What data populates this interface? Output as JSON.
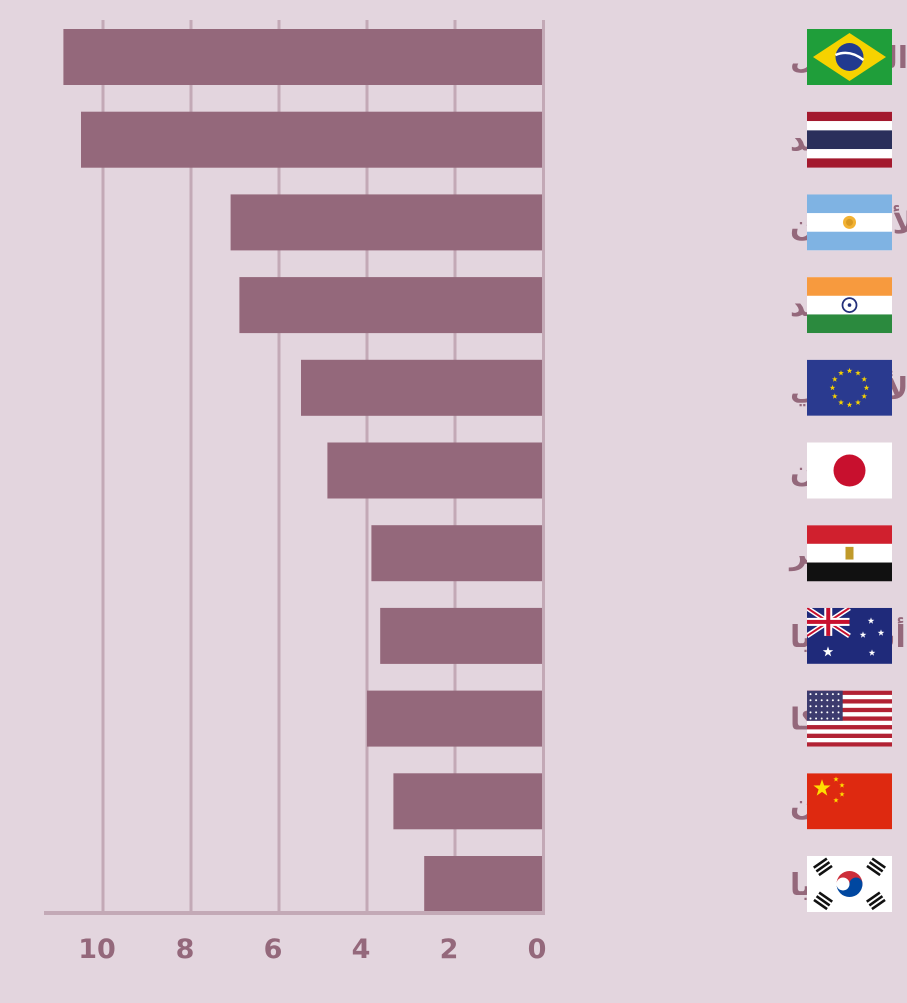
{
  "chart_data": {
    "type": "bar",
    "orientation": "horizontal",
    "direction": "right-to-left",
    "categories": [
      {
        "label": "البرازيل",
        "flag": "brazil-flag"
      },
      {
        "label": "تايلاند",
        "flag": "thailand-flag"
      },
      {
        "label": "الأرجنتين",
        "flag": "argentina-flag"
      },
      {
        "label": "الهند",
        "flag": "india-flag"
      },
      {
        "label": "المكتب الأوروبي",
        "flag": "eu-flag"
      },
      {
        "label": "اليابان",
        "flag": "japan-flag"
      },
      {
        "label": "مصر",
        "flag": "egypt-flag"
      },
      {
        "label": "أستراليا",
        "flag": "australia-flag"
      },
      {
        "label": "أمريكا",
        "flag": "usa-flag"
      },
      {
        "label": "الصين",
        "flag": "china-flag"
      },
      {
        "label": "كوريا",
        "flag": "korea-flag"
      }
    ],
    "values": [
      10.9,
      10.5,
      7.1,
      6.9,
      5.5,
      4.9,
      3.9,
      3.7,
      4.0,
      3.4,
      2.7
    ],
    "xlim": [
      0,
      11
    ],
    "xticks": [
      "0",
      "2",
      "4",
      "6",
      "8",
      "10"
    ],
    "grid": true,
    "colors": {
      "background": "#e3d5de",
      "bar": "#94687b",
      "grid": "#c3a9b6",
      "axis": "#94687b",
      "text": "#94687b"
    }
  }
}
